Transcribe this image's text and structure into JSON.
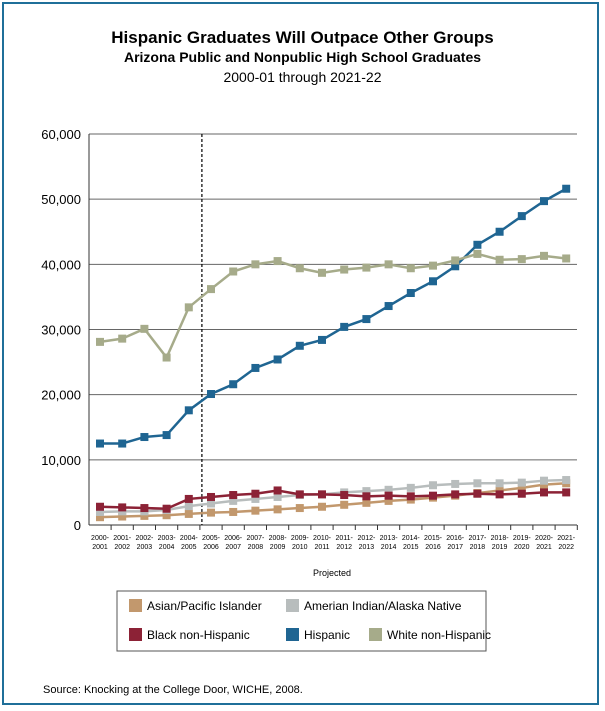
{
  "chart_data": {
    "type": "line",
    "title": "Hispanic Graduates Will Outpace Other Groups",
    "subtitle": "Arizona Public and Nonpublic High School Graduates",
    "subtitle2": "2000-01 through 2021-22",
    "xlabel": "Projected",
    "ylabel": "",
    "ylim": [
      0,
      60000
    ],
    "yticks": [
      "0",
      "10,000",
      "20,000",
      "30,000",
      "40,000",
      "50,000",
      "60,000"
    ],
    "ytick_values": [
      0,
      10000,
      20000,
      30000,
      40000,
      50000,
      60000
    ],
    "grid": true,
    "legend_placement": "bottom",
    "x": [
      [
        "2000-",
        "2001"
      ],
      [
        "2001-",
        "2002"
      ],
      [
        "2002-",
        "2003"
      ],
      [
        "2003-",
        "2004"
      ],
      [
        "2004-",
        "2005"
      ],
      [
        "2005-",
        "2006"
      ],
      [
        "2006-",
        "2007"
      ],
      [
        "2007-",
        "2008"
      ],
      [
        "2008-",
        "2009"
      ],
      [
        "2009-",
        "2010"
      ],
      [
        "2010-",
        "2011"
      ],
      [
        "2011-",
        "2012"
      ],
      [
        "2012-",
        "2013"
      ],
      [
        "2013-",
        "2014"
      ],
      [
        "2014-",
        "2015"
      ],
      [
        "2015-",
        "2016"
      ],
      [
        "2016-",
        "2017"
      ],
      [
        "2017-",
        "2018"
      ],
      [
        "2018-",
        "2019"
      ],
      [
        "2019-",
        "2020"
      ],
      [
        "2020-",
        "2021"
      ],
      [
        "2021-",
        "2022"
      ]
    ],
    "projection_divider_after_index": 4,
    "series": [
      {
        "name": "Asian/Pacific Islander",
        "color": "#c2986d",
        "values": [
          1200,
          1300,
          1400,
          1500,
          1700,
          1900,
          2000,
          2200,
          2400,
          2600,
          2800,
          3100,
          3400,
          3700,
          3900,
          4200,
          4500,
          4900,
          5300,
          5700,
          6200,
          6400
        ]
      },
      {
        "name": "Amerian Indian/Alaska Native",
        "color": "#b8bdbd",
        "values": [
          2000,
          2100,
          2100,
          2300,
          2900,
          3300,
          3700,
          4000,
          4300,
          4600,
          4700,
          5000,
          5200,
          5400,
          5700,
          6100,
          6300,
          6400,
          6400,
          6500,
          6800,
          6900
        ]
      },
      {
        "name": "Black non-Hispanic",
        "color": "#8c2236",
        "values": [
          2800,
          2700,
          2600,
          2500,
          4000,
          4300,
          4600,
          4800,
          5300,
          4700,
          4700,
          4600,
          4400,
          4500,
          4400,
          4500,
          4700,
          4800,
          4700,
          4800,
          5000,
          5000
        ]
      },
      {
        "name": "Hispanic",
        "color": "#1f6592",
        "values": [
          12500,
          12500,
          13500,
          13800,
          17600,
          20100,
          21600,
          24100,
          25400,
          27500,
          28400,
          30400,
          31600,
          33600,
          35600,
          37400,
          39700,
          43000,
          45000,
          47400,
          49700,
          51600
        ]
      },
      {
        "name": "White non-Hispanic",
        "color": "#a6ab8a",
        "values": [
          28100,
          28600,
          30100,
          25700,
          33400,
          36200,
          38900,
          40000,
          40500,
          39400,
          38700,
          39200,
          39500,
          40000,
          39400,
          39800,
          40600,
          41600,
          40700,
          40800,
          41300,
          40900
        ]
      }
    ],
    "legend": [
      {
        "name": "Asian/Pacific Islander",
        "color": "#c2986d"
      },
      {
        "name": "Amerian Indian/Alaska Native",
        "color": "#b8bdbd"
      },
      {
        "name": "Black non-Hispanic",
        "color": "#8c2236"
      },
      {
        "name": "Hispanic",
        "color": "#1f6592"
      },
      {
        "name": "White non-Hispanic",
        "color": "#a6ab8a"
      }
    ]
  },
  "source": "Source: Knocking at the College Door, WICHE, 2008."
}
